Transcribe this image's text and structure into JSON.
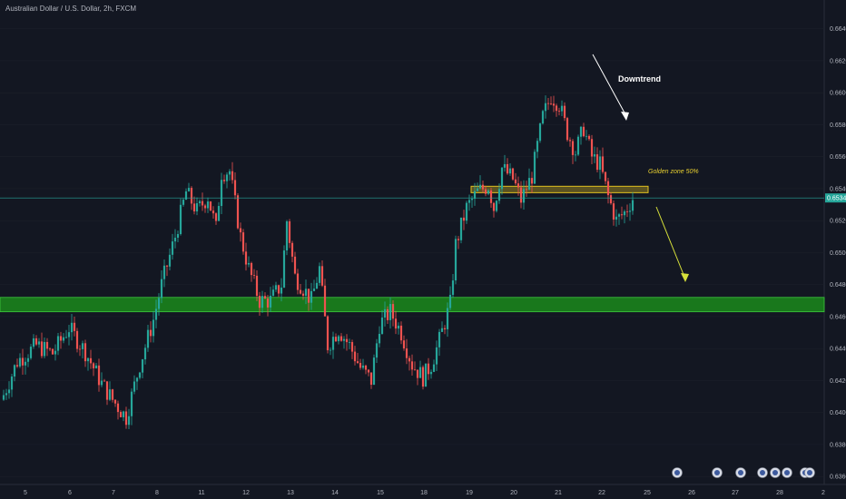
{
  "header": {
    "symbol_title": "Australian Dollar / U.S. Dollar, 2h, FXCM"
  },
  "chart_data": {
    "type": "candlestick",
    "title": "Australian Dollar / U.S. Dollar, 2h, FXCM",
    "ylim": [
      0.6355,
      0.6658
    ],
    "y_ticks": [
      "0.66400",
      "0.66200",
      "0.66000",
      "0.65800",
      "0.65600",
      "0.65400",
      "0.65200",
      "0.65000",
      "0.64800",
      "0.64600",
      "0.64400",
      "0.64200",
      "0.64000",
      "0.63800",
      "0.63600"
    ],
    "y_tick_values": [
      0.664,
      0.662,
      0.66,
      0.658,
      0.656,
      0.654,
      0.652,
      0.65,
      0.648,
      0.646,
      0.644,
      0.642,
      0.64,
      0.638,
      0.636
    ],
    "x_ticks": [
      "5",
      "6",
      "7",
      "8",
      "11",
      "12",
      "13",
      "14",
      "15",
      "18",
      "19",
      "20",
      "21",
      "22",
      "25",
      "26",
      "27",
      "28",
      "2"
    ],
    "current_price": {
      "label": "0.65342",
      "value": 0.65342
    },
    "colors": {
      "up": "#26a69a",
      "down": "#ef5350",
      "background": "#131722",
      "zone_fill": "#1b8a1b",
      "zone_border": "#3ec93e",
      "golden_zone": "#e0c020",
      "grid": "#1e222d"
    },
    "zones": [
      {
        "name": "support-zone",
        "from": 0.6463,
        "to": 0.6472
      },
      {
        "name": "golden-zone",
        "from": 0.65375,
        "to": 0.65415,
        "label": "Golden zone 50%"
      }
    ],
    "annotations": [
      {
        "text": "Downtrend"
      },
      {
        "text": "Golden zone 50%"
      }
    ],
    "key_points": [
      {
        "i": 0,
        "close": 0.6411
      },
      {
        "i": 5,
        "close": 0.6432
      },
      {
        "i": 12,
        "close": 0.6442
      },
      {
        "i": 18,
        "close": 0.6437
      },
      {
        "i": 24,
        "close": 0.6453
      },
      {
        "i": 30,
        "close": 0.6438
      },
      {
        "i": 36,
        "close": 0.6418
      },
      {
        "i": 40,
        "close": 0.6408
      },
      {
        "i": 45,
        "close": 0.6397
      },
      {
        "i": 50,
        "close": 0.643
      },
      {
        "i": 55,
        "close": 0.6458
      },
      {
        "i": 58,
        "close": 0.648
      },
      {
        "i": 63,
        "close": 0.651
      },
      {
        "i": 67,
        "close": 0.6538
      },
      {
        "i": 71,
        "close": 0.6526
      },
      {
        "i": 75,
        "close": 0.6535
      },
      {
        "i": 78,
        "close": 0.6515
      },
      {
        "i": 80,
        "close": 0.655
      },
      {
        "i": 83,
        "close": 0.6551
      },
      {
        "i": 87,
        "close": 0.651
      },
      {
        "i": 90,
        "close": 0.649
      },
      {
        "i": 94,
        "close": 0.647
      },
      {
        "i": 98,
        "close": 0.647
      },
      {
        "i": 102,
        "close": 0.648
      },
      {
        "i": 104,
        "close": 0.652
      },
      {
        "i": 107,
        "close": 0.6485
      },
      {
        "i": 110,
        "close": 0.6478
      },
      {
        "i": 113,
        "close": 0.647
      },
      {
        "i": 116,
        "close": 0.649
      },
      {
        "i": 119,
        "close": 0.6442
      },
      {
        "i": 123,
        "close": 0.6452
      },
      {
        "i": 127,
        "close": 0.6442
      },
      {
        "i": 131,
        "close": 0.6428
      },
      {
        "i": 135,
        "close": 0.642
      },
      {
        "i": 138,
        "close": 0.6455
      },
      {
        "i": 142,
        "close": 0.6463
      },
      {
        "i": 146,
        "close": 0.645
      },
      {
        "i": 150,
        "close": 0.643
      },
      {
        "i": 154,
        "close": 0.6422
      },
      {
        "i": 157,
        "close": 0.643
      },
      {
        "i": 160,
        "close": 0.6445
      },
      {
        "i": 164,
        "close": 0.6468
      },
      {
        "i": 166,
        "close": 0.6505
      },
      {
        "i": 170,
        "close": 0.6528
      },
      {
        "i": 174,
        "close": 0.6538
      },
      {
        "i": 178,
        "close": 0.6542
      },
      {
        "i": 180,
        "close": 0.6528
      },
      {
        "i": 183,
        "close": 0.6553
      },
      {
        "i": 187,
        "close": 0.6546
      },
      {
        "i": 190,
        "close": 0.6533
      },
      {
        "i": 194,
        "close": 0.6548
      },
      {
        "i": 198,
        "close": 0.6585
      },
      {
        "i": 201,
        "close": 0.6598
      },
      {
        "i": 204,
        "close": 0.6593
      },
      {
        "i": 207,
        "close": 0.6575
      },
      {
        "i": 210,
        "close": 0.6563
      },
      {
        "i": 213,
        "close": 0.6578
      },
      {
        "i": 216,
        "close": 0.656
      },
      {
        "i": 219,
        "close": 0.6555
      },
      {
        "i": 222,
        "close": 0.6535
      },
      {
        "i": 225,
        "close": 0.652
      },
      {
        "i": 228,
        "close": 0.6525
      },
      {
        "i": 231,
        "close": 0.6534
      }
    ]
  }
}
